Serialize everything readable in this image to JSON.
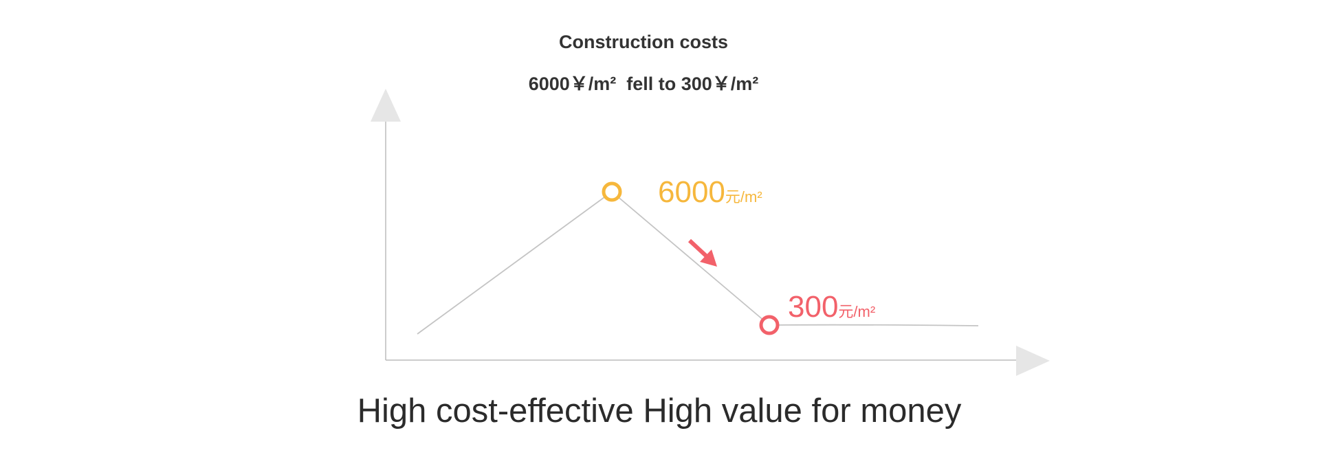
{
  "title": "Construction costs",
  "subtitle": "6000￥/m²  fell to 300￥/m²",
  "peak": {
    "value": "6000",
    "unit": "元/m²"
  },
  "low": {
    "value": "300",
    "unit": "元/m²"
  },
  "caption": "High cost-effective High value for money"
}
